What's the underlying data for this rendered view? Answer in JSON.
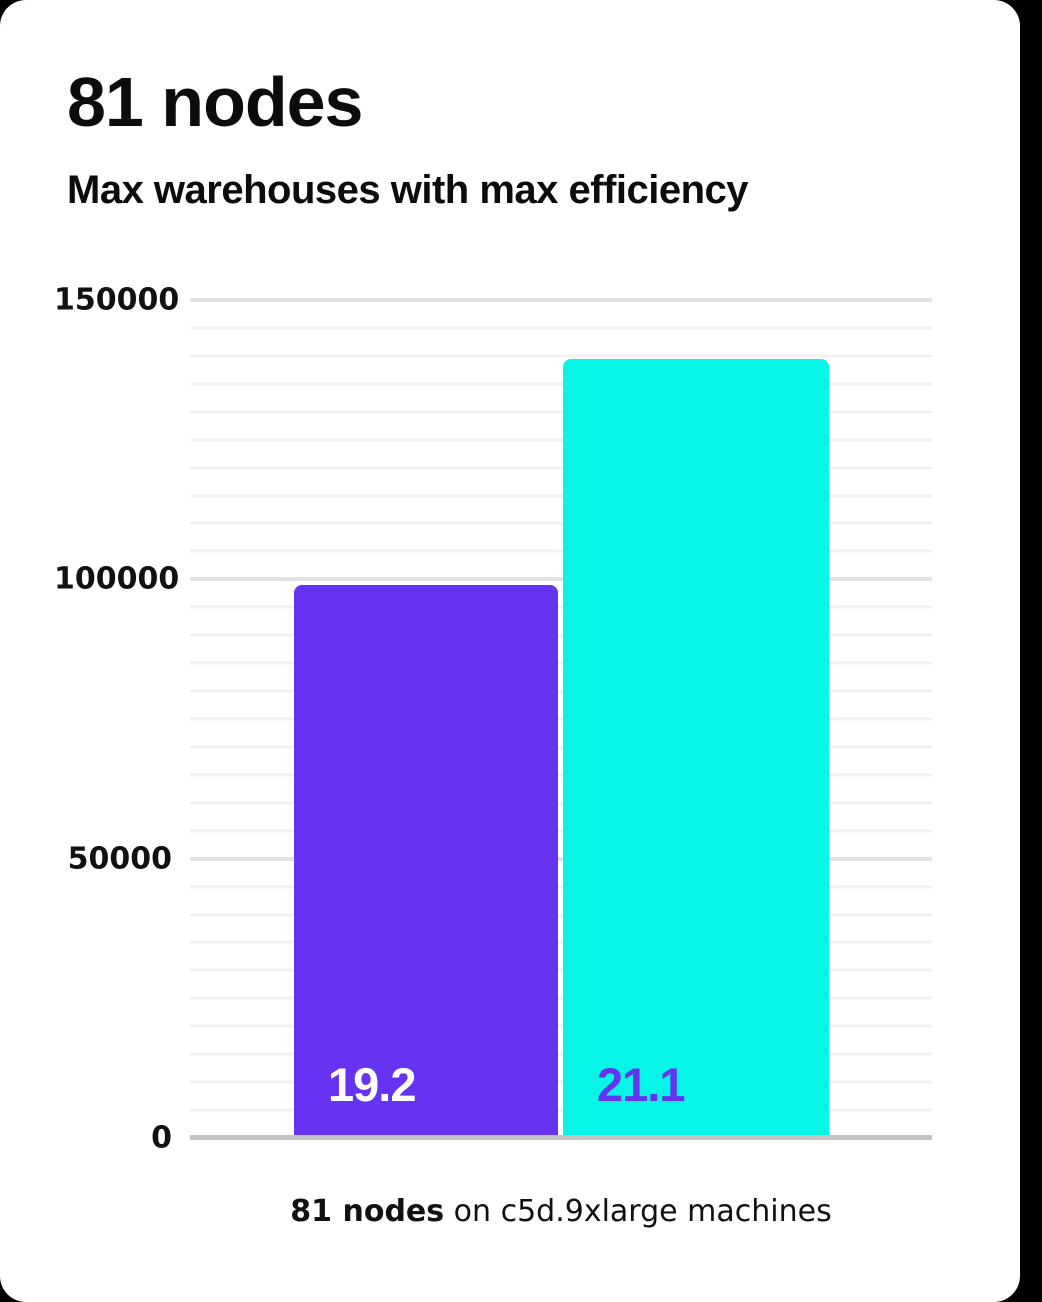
{
  "card": {
    "title": "81 nodes",
    "subtitle": "Max warehouses with max efficiency"
  },
  "caption": {
    "bold": "81 nodes",
    "rest": " on c5d.9xlarge machines"
  },
  "chart_data": {
    "type": "bar",
    "title": "81 nodes",
    "subtitle": "Max warehouses with max efficiency",
    "caption": "81 nodes on c5d.9xlarge machines",
    "categories": [
      "bar-1",
      "bar-2"
    ],
    "values": [
      99000,
      139400
    ],
    "bar_labels": [
      "19.2",
      "21.1"
    ],
    "bar_colors": [
      "#6733f2",
      "#06f5e6"
    ],
    "bar_label_colors": [
      "#ffffff",
      "#6733f2"
    ],
    "ylim": [
      0,
      150000
    ],
    "yticks": [
      "0",
      "50000",
      "100000",
      "150000"
    ],
    "ytick_values": [
      0,
      50000,
      100000,
      150000
    ],
    "minor_grid_step": 5000,
    "major_grid_step": 50000,
    "grid": true,
    "legend": "none",
    "colors": {
      "grid_minor": "#f1f1f1",
      "grid_major": "#e2e2e2",
      "axis_line": "#c3c3c3",
      "text": "#0c0c0c",
      "card_background": "#ffffff",
      "page_background": "#000000"
    }
  }
}
